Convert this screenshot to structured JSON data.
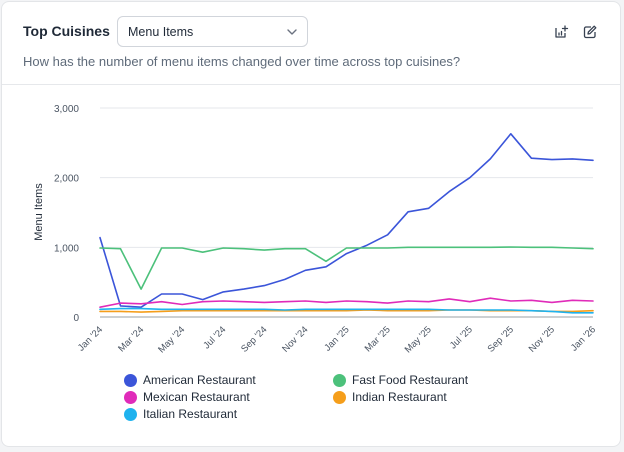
{
  "header": {
    "title": "Top Cuisines",
    "select_value": "Menu Items",
    "subtitle": "How has the number of menu items changed over time across top cuisines?",
    "icons": [
      "add-to-dashboard-icon",
      "edit-icon"
    ]
  },
  "chart_data": {
    "type": "line",
    "title": "",
    "xlabel": "",
    "ylabel": "Menu Items",
    "ylim": [
      0,
      3000
    ],
    "yticks": [
      0,
      1000,
      2000,
      3000
    ],
    "ytick_labels": [
      "0",
      "1,000",
      "2,000",
      "3,000"
    ],
    "grid": true,
    "legend_position": "bottom",
    "x": [
      "Jan '24",
      "Feb '24",
      "Mar '24",
      "Apr '24",
      "May '24",
      "Jun '24",
      "Jul '24",
      "Aug '24",
      "Sep '24",
      "Oct '24",
      "Nov '24",
      "Dec '24",
      "Jan '25",
      "Feb '25",
      "Mar '25",
      "Apr '25",
      "May '25",
      "Jun '25",
      "Jul '25",
      "Aug '25",
      "Sep '25",
      "Oct '25",
      "Nov '25",
      "Dec '25",
      "Jan '26"
    ],
    "xtick_labels": [
      "Jan '24",
      "Mar '24",
      "May '24",
      "Jul '24",
      "Sep '24",
      "Nov '24",
      "Jan '25",
      "Mar '25",
      "May '25",
      "Jul '25",
      "Sep '25",
      "Nov '25",
      "Jan '26"
    ],
    "series": [
      {
        "name": "American Restaurant",
        "color": "#3b55d9",
        "values": [
          1140,
          160,
          140,
          330,
          330,
          250,
          360,
          400,
          450,
          540,
          670,
          720,
          910,
          1030,
          1180,
          1510,
          1560,
          1800,
          2000,
          2270,
          2630,
          2280,
          2260,
          2270,
          2250
        ]
      },
      {
        "name": "Fast Food Restaurant",
        "color": "#4cc17b",
        "values": [
          990,
          980,
          400,
          990,
          990,
          930,
          990,
          980,
          960,
          980,
          980,
          800,
          990,
          990,
          990,
          1000,
          1000,
          1000,
          1000,
          1000,
          1005,
          1000,
          1000,
          990,
          980
        ]
      },
      {
        "name": "Mexican Restaurant",
        "color": "#e02bb9",
        "values": [
          140,
          200,
          190,
          220,
          180,
          220,
          230,
          220,
          210,
          220,
          230,
          210,
          230,
          220,
          200,
          230,
          220,
          260,
          220,
          270,
          230,
          240,
          210,
          240,
          230
        ]
      },
      {
        "name": "Indian Restaurant",
        "color": "#f59e1b",
        "values": [
          80,
          80,
          70,
          80,
          90,
          90,
          90,
          90,
          90,
          90,
          90,
          90,
          90,
          100,
          90,
          90,
          90,
          100,
          100,
          90,
          90,
          90,
          80,
          80,
          90
        ]
      },
      {
        "name": "Italian Restaurant",
        "color": "#1fb2ee",
        "values": [
          110,
          120,
          120,
          110,
          110,
          110,
          110,
          110,
          110,
          100,
          110,
          110,
          110,
          110,
          110,
          110,
          110,
          100,
          100,
          100,
          100,
          90,
          80,
          60,
          60
        ]
      }
    ]
  }
}
